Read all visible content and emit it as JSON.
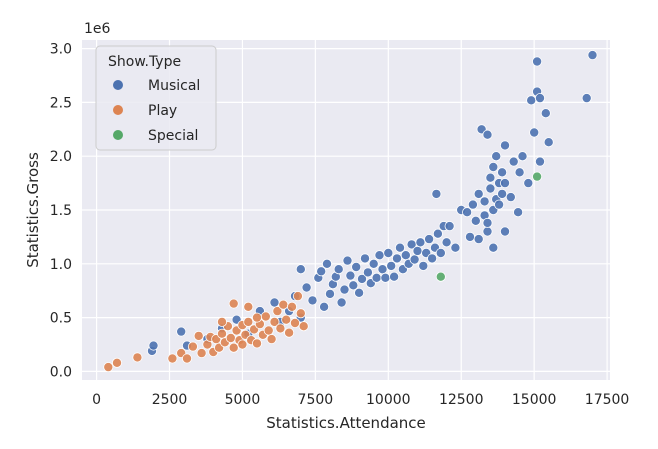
{
  "chart_data": {
    "type": "scatter",
    "title": "",
    "xlabel": "Statistics.Attendance",
    "ylabel": "Statistics.Gross",
    "y_offset_label": "1e6",
    "xlim": [
      -500,
      17600
    ],
    "ylim": [
      -80000,
      3080000
    ],
    "x_ticks": [
      0,
      2500,
      5000,
      7500,
      10000,
      12500,
      15000,
      17500
    ],
    "x_tick_labels": [
      "0",
      "2500",
      "5000",
      "7500",
      "10000",
      "12500",
      "15000",
      "17500"
    ],
    "y_ticks": [
      0,
      500000,
      1000000,
      1500000,
      2000000,
      2500000,
      3000000
    ],
    "y_tick_labels": [
      "0.0",
      "0.5",
      "1.0",
      "1.5",
      "2.0",
      "2.5",
      "3.0"
    ],
    "grid": true,
    "background": "#eaeaf2",
    "legend": {
      "title": "Show.Type",
      "placement": "top-left",
      "entries": [
        "Musical",
        "Play",
        "Special"
      ]
    },
    "series": [
      {
        "name": "Musical",
        "color": "#4c72b0",
        "points": [
          [
            1900,
            190000
          ],
          [
            1950,
            240000
          ],
          [
            2900,
            370000
          ],
          [
            3100,
            240000
          ],
          [
            3800,
            300000
          ],
          [
            4300,
            400000
          ],
          [
            4800,
            480000
          ],
          [
            5200,
            350000
          ],
          [
            5600,
            560000
          ],
          [
            6100,
            640000
          ],
          [
            6300,
            460000
          ],
          [
            6600,
            560000
          ],
          [
            6800,
            700000
          ],
          [
            7000,
            950000
          ],
          [
            7000,
            500000
          ],
          [
            7200,
            780000
          ],
          [
            7400,
            660000
          ],
          [
            7600,
            870000
          ],
          [
            7700,
            930000
          ],
          [
            7800,
            600000
          ],
          [
            7900,
            1000000
          ],
          [
            8000,
            720000
          ],
          [
            8100,
            810000
          ],
          [
            8200,
            880000
          ],
          [
            8300,
            950000
          ],
          [
            8400,
            640000
          ],
          [
            8500,
            760000
          ],
          [
            8600,
            1030000
          ],
          [
            8700,
            890000
          ],
          [
            8800,
            800000
          ],
          [
            8900,
            970000
          ],
          [
            9000,
            730000
          ],
          [
            9100,
            860000
          ],
          [
            9200,
            1050000
          ],
          [
            9300,
            920000
          ],
          [
            9400,
            820000
          ],
          [
            9500,
            1000000
          ],
          [
            9600,
            870000
          ],
          [
            9700,
            1080000
          ],
          [
            9800,
            950000
          ],
          [
            9900,
            870000
          ],
          [
            10000,
            1100000
          ],
          [
            10100,
            980000
          ],
          [
            10200,
            880000
          ],
          [
            10300,
            1050000
          ],
          [
            10400,
            1150000
          ],
          [
            10500,
            950000
          ],
          [
            10600,
            1080000
          ],
          [
            10700,
            1000000
          ],
          [
            10800,
            1180000
          ],
          [
            10900,
            1040000
          ],
          [
            11000,
            1120000
          ],
          [
            11100,
            1200000
          ],
          [
            11200,
            980000
          ],
          [
            11300,
            1100000
          ],
          [
            11400,
            1230000
          ],
          [
            11500,
            1050000
          ],
          [
            11600,
            1150000
          ],
          [
            11700,
            1280000
          ],
          [
            11800,
            1100000
          ],
          [
            11900,
            1350000
          ],
          [
            12000,
            1200000
          ],
          [
            11650,
            1650000
          ],
          [
            12100,
            1350000
          ],
          [
            12300,
            1150000
          ],
          [
            12500,
            1500000
          ],
          [
            12700,
            1480000
          ],
          [
            12800,
            1250000
          ],
          [
            12900,
            1550000
          ],
          [
            13000,
            1400000
          ],
          [
            13100,
            1650000
          ],
          [
            13200,
            2250000
          ],
          [
            13300,
            1580000
          ],
          [
            13300,
            1450000
          ],
          [
            13400,
            2200000
          ],
          [
            13400,
            1300000
          ],
          [
            13500,
            1800000
          ],
          [
            13500,
            1700000
          ],
          [
            13600,
            1900000
          ],
          [
            13600,
            1500000
          ],
          [
            13700,
            2000000
          ],
          [
            13700,
            1600000
          ],
          [
            13800,
            1750000
          ],
          [
            13800,
            1550000
          ],
          [
            13900,
            1850000
          ],
          [
            13900,
            1650000
          ],
          [
            14000,
            2100000
          ],
          [
            14000,
            1750000
          ],
          [
            14200,
            1620000
          ],
          [
            14300,
            1950000
          ],
          [
            14450,
            1480000
          ],
          [
            14500,
            1850000
          ],
          [
            14600,
            2000000
          ],
          [
            14800,
            1750000
          ],
          [
            14900,
            2520000
          ],
          [
            15000,
            2220000
          ],
          [
            15100,
            2600000
          ],
          [
            15100,
            2880000
          ],
          [
            15200,
            2540000
          ],
          [
            15200,
            1950000
          ],
          [
            15400,
            2400000
          ],
          [
            15500,
            2130000
          ],
          [
            16800,
            2540000
          ],
          [
            17000,
            2940000
          ],
          [
            13400,
            1380000
          ],
          [
            13600,
            1150000
          ],
          [
            14000,
            1300000
          ],
          [
            13100,
            1230000
          ]
        ]
      },
      {
        "name": "Play",
        "color": "#dd8452",
        "points": [
          [
            400,
            40000
          ],
          [
            700,
            80000
          ],
          [
            1400,
            130000
          ],
          [
            2600,
            120000
          ],
          [
            2900,
            170000
          ],
          [
            3100,
            120000
          ],
          [
            3300,
            230000
          ],
          [
            3600,
            170000
          ],
          [
            3800,
            250000
          ],
          [
            3900,
            320000
          ],
          [
            4000,
            180000
          ],
          [
            4100,
            300000
          ],
          [
            4200,
            220000
          ],
          [
            4300,
            350000
          ],
          [
            4400,
            270000
          ],
          [
            4500,
            420000
          ],
          [
            4600,
            310000
          ],
          [
            4700,
            220000
          ],
          [
            4800,
            380000
          ],
          [
            4900,
            290000
          ],
          [
            5000,
            430000
          ],
          [
            5000,
            250000
          ],
          [
            5100,
            340000
          ],
          [
            5200,
            460000
          ],
          [
            5300,
            290000
          ],
          [
            5400,
            390000
          ],
          [
            5500,
            260000
          ],
          [
            5600,
            440000
          ],
          [
            5700,
            340000
          ],
          [
            5800,
            510000
          ],
          [
            5900,
            380000
          ],
          [
            6000,
            300000
          ],
          [
            6100,
            460000
          ],
          [
            6200,
            560000
          ],
          [
            6300,
            400000
          ],
          [
            6400,
            620000
          ],
          [
            6500,
            480000
          ],
          [
            6600,
            360000
          ],
          [
            6700,
            600000
          ],
          [
            6800,
            450000
          ],
          [
            6900,
            700000
          ],
          [
            7000,
            540000
          ],
          [
            7100,
            420000
          ],
          [
            4700,
            630000
          ],
          [
            5200,
            600000
          ],
          [
            3500,
            330000
          ],
          [
            4300,
            460000
          ],
          [
            5500,
            500000
          ]
        ]
      },
      {
        "name": "Special",
        "color": "#55a868",
        "points": [
          [
            11800,
            880000
          ],
          [
            15100,
            1810000
          ]
        ]
      }
    ]
  }
}
